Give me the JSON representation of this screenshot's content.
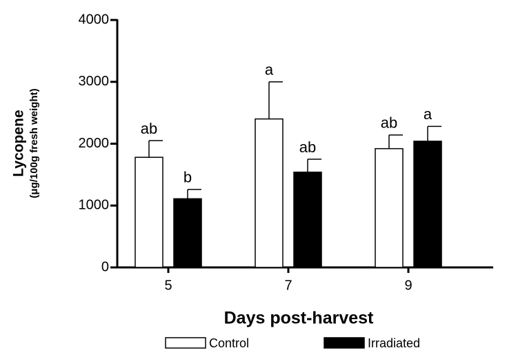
{
  "chart_data": {
    "type": "bar",
    "y_label": "Lycopene",
    "y_sublabel": "(μg/100g fresh weight)",
    "x_label": "Days post-harvest",
    "categories": [
      "5",
      "7",
      "9"
    ],
    "series": [
      {
        "name": "Control",
        "color": "#ffffff",
        "values": [
          1780,
          2400,
          1920
        ],
        "errors": [
          270,
          600,
          220
        ],
        "letters": [
          "ab",
          "a",
          "ab"
        ]
      },
      {
        "name": "Irradiated",
        "color": "#000000",
        "values": [
          1110,
          1540,
          2040
        ],
        "errors": [
          150,
          210,
          240
        ],
        "letters": [
          "b",
          "ab",
          "a"
        ]
      }
    ],
    "ylim": [
      0,
      4000
    ],
    "yticks": [
      0,
      1000,
      2000,
      3000,
      4000
    ],
    "grid": false
  }
}
